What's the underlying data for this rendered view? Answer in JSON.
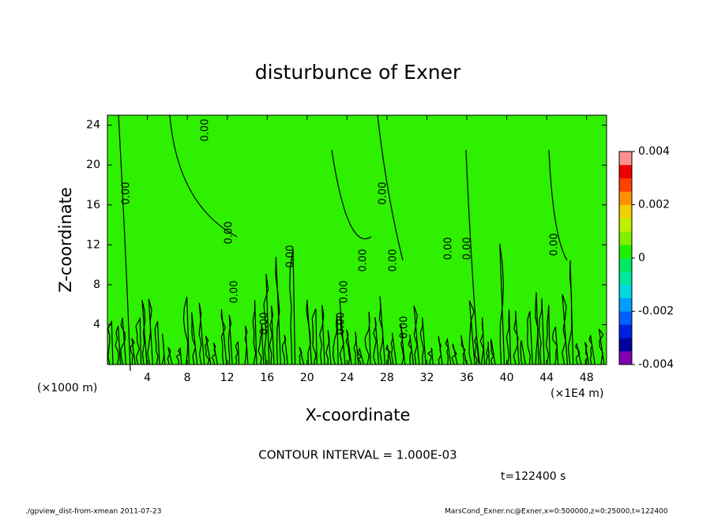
{
  "chart_data": {
    "type": "contour",
    "title": "disturbunce of Exner",
    "xlabel": "X-coordinate",
    "ylabel": "Z-coordinate",
    "x_scale_note": "(×1000 m)",
    "x_scale_note2": "(×1E4 m)",
    "xlim": [
      0,
      50
    ],
    "xticks": [
      4,
      8,
      12,
      16,
      20,
      24,
      28,
      32,
      36,
      40,
      44,
      48
    ],
    "ylim": [
      0,
      25
    ],
    "yticks": [
      4,
      8,
      12,
      16,
      20,
      24
    ],
    "field_color": "#2ef000",
    "contour_color": "#000000",
    "contour_labels": [
      "0.00",
      "0.00",
      "0.00",
      "0.00",
      "0.00",
      "0.00",
      "0.00",
      "0.00",
      "0.00",
      "0.00",
      "0.00",
      "0.00",
      "0.00",
      "0.00",
      "0.00"
    ],
    "colorbar": {
      "lim": [
        -0.004,
        0.004
      ],
      "ticks": [
        -0.004,
        -0.002,
        0,
        0.002,
        0.004
      ],
      "colors": [
        "#8000b0",
        "#0000a0",
        "#0020e0",
        "#0060ff",
        "#00a0ff",
        "#00d8e0",
        "#00e8a0",
        "#00e860",
        "#20f000",
        "#80f000",
        "#c0f000",
        "#f0d000",
        "#ff9000",
        "#ff4000",
        "#f00000",
        "#ff9090"
      ]
    },
    "contour_interval": "CONTOUR INTERVAL = 1.000E-03",
    "time": "t=122400 s",
    "footer_left": "./gpview_dist-from-xmean  2011-07-23",
    "footer_right": "MarsCond_Exner.nc@Exner,x=0:500000,z=0:25000,t=122400"
  }
}
